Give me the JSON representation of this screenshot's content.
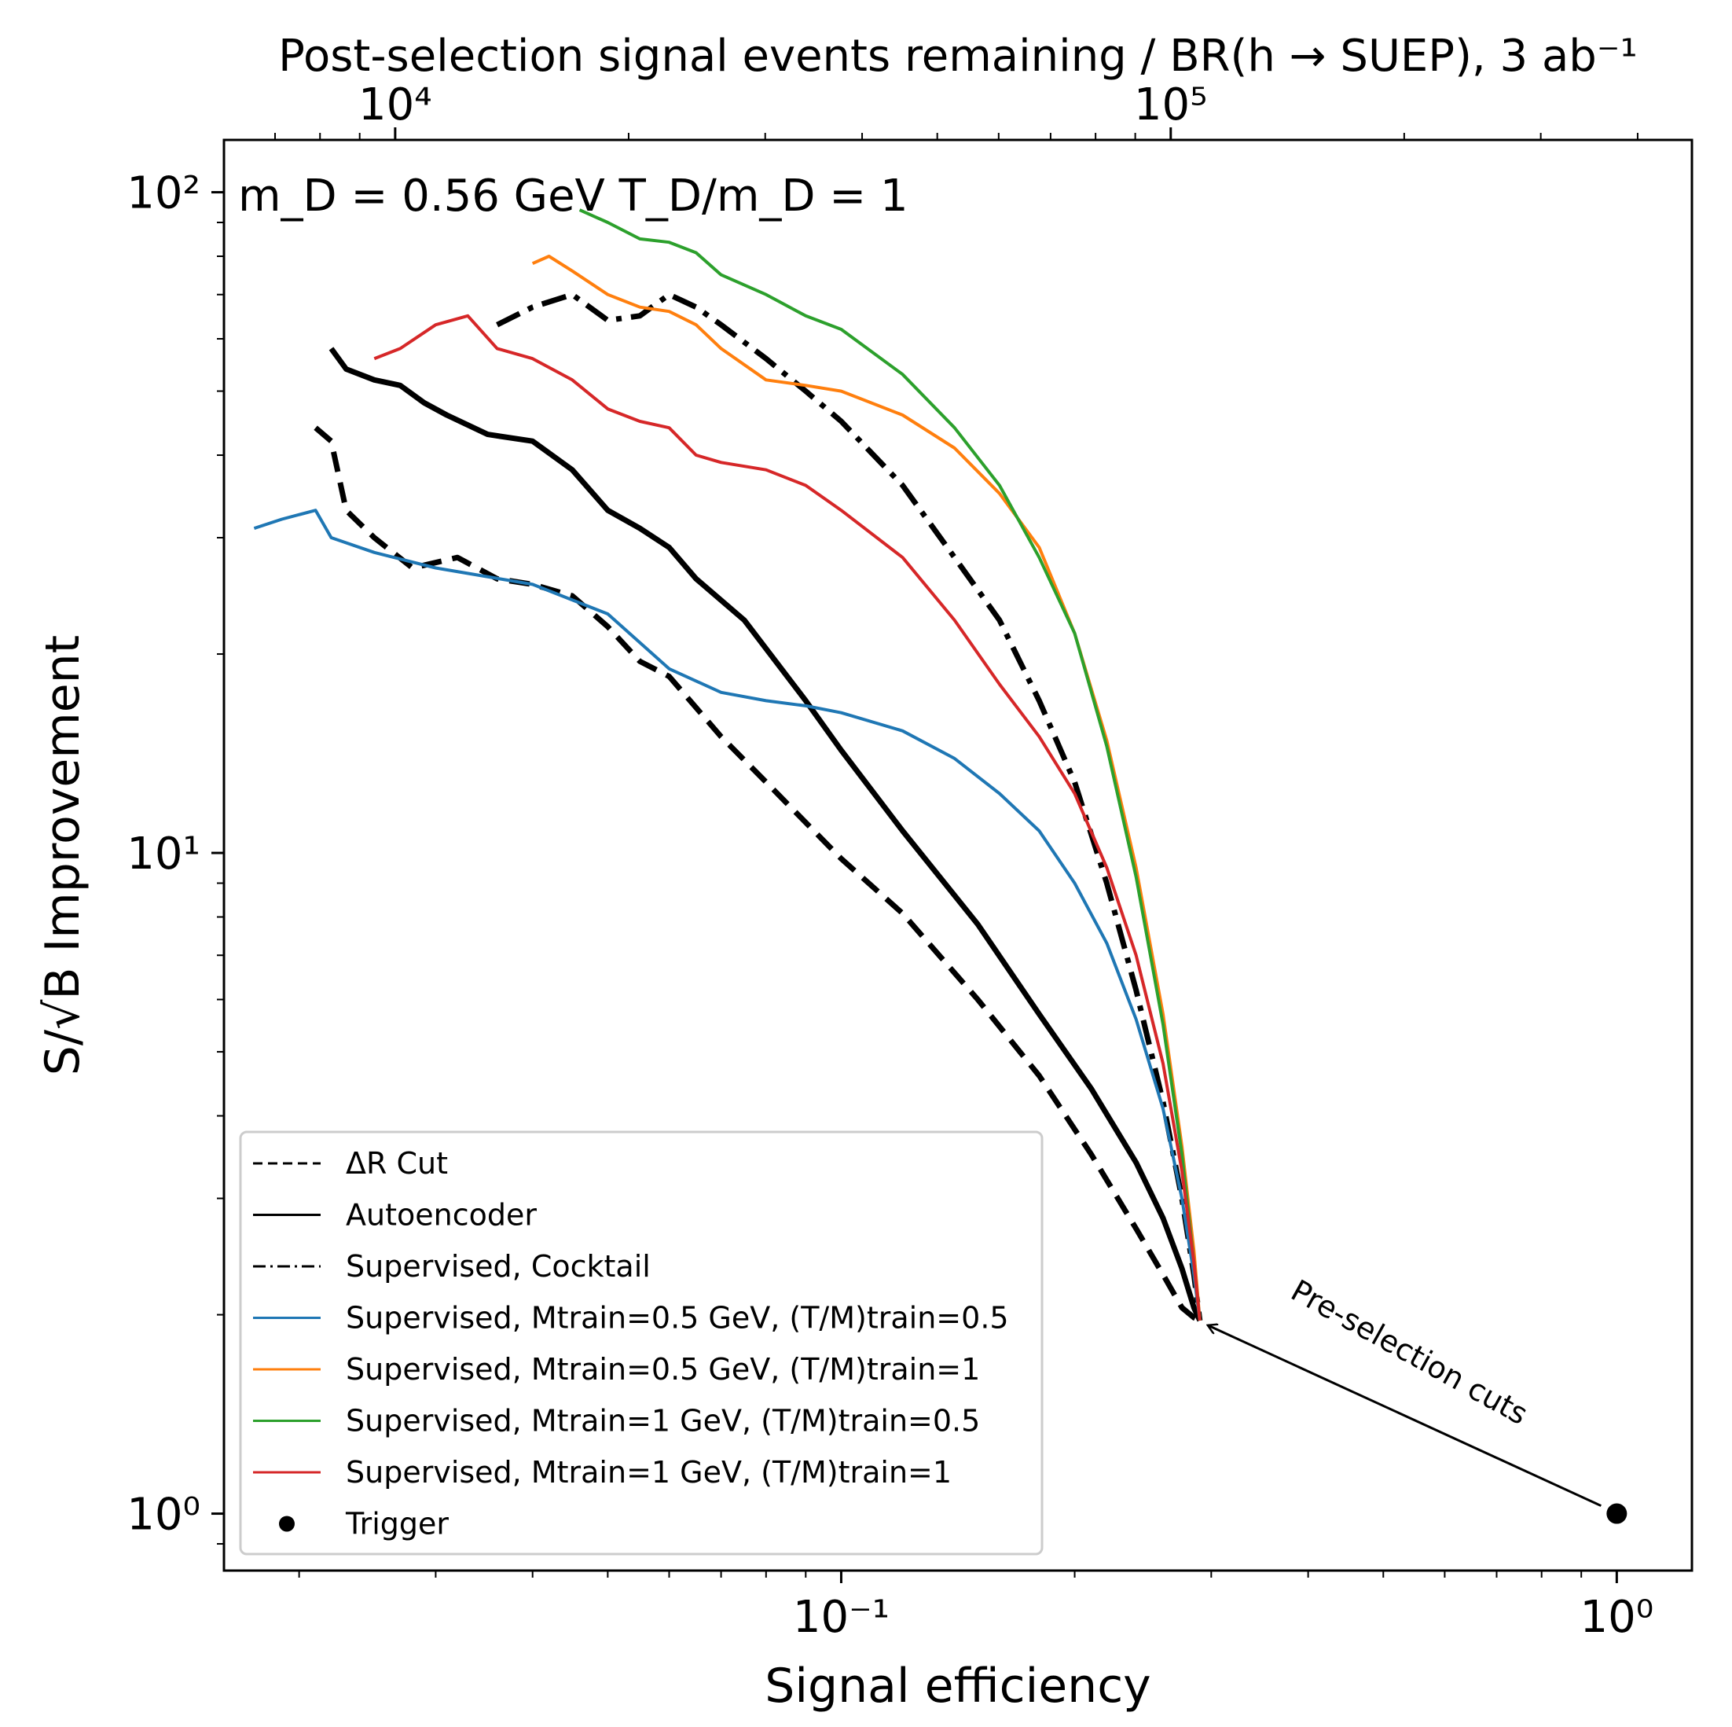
{
  "chart_data": {
    "type": "line",
    "x_scale": "log",
    "y_scale": "log",
    "xlabel": "Signal efficiency",
    "ylabel": "S/√B Improvement",
    "top_axis_label": "Post-selection signal events remaining / BR(h → SUEP), 3 ab⁻¹",
    "xlim": [
      0.016,
      1.25
    ],
    "ylim": [
      0.82,
      120
    ],
    "x_ticks": [
      {
        "value": 0.1,
        "label": "10⁻¹"
      },
      {
        "value": 1,
        "label": "10⁰"
      }
    ],
    "y_ticks": [
      {
        "value": 1,
        "label": "10⁰"
      },
      {
        "value": 10,
        "label": "10¹"
      },
      {
        "value": 100,
        "label": "10²"
      }
    ],
    "top_ticks": [
      {
        "value": 0.0266,
        "label": "10⁴"
      },
      {
        "value": 0.266,
        "label": "10⁵"
      }
    ],
    "inset_label": "m_D = 0.56 GeV  T_D/m_D = 1",
    "annotation": {
      "text": "Pre-selection cuts",
      "from": [
        1.0,
        1.0
      ],
      "to": [
        0.29,
        1.96
      ]
    },
    "series": [
      {
        "name": "ΔR̄ Cut",
        "legend_label": "ΔR Cut",
        "color": "#000000",
        "style": "dashed",
        "width": 7,
        "x": [
          0.021,
          0.022,
          0.023,
          0.025,
          0.028,
          0.032,
          0.036,
          0.04,
          0.045,
          0.05,
          0.055,
          0.06,
          0.07,
          0.08,
          0.1,
          0.12,
          0.15,
          0.18,
          0.21,
          0.24,
          0.26,
          0.275,
          0.285,
          0.29
        ],
        "y": [
          44,
          42,
          33,
          30,
          27,
          28,
          26,
          25.5,
          24.5,
          22,
          19.5,
          18.5,
          15,
          12.8,
          9.8,
          8.1,
          6.0,
          4.6,
          3.5,
          2.7,
          2.3,
          2.05,
          1.98,
          1.96
        ]
      },
      {
        "name": "Autoencoder",
        "legend_label": "Autoencoder",
        "color": "#000000",
        "style": "solid",
        "width": 7,
        "x": [
          0.022,
          0.023,
          0.025,
          0.027,
          0.029,
          0.031,
          0.035,
          0.04,
          0.045,
          0.05,
          0.055,
          0.06,
          0.065,
          0.075,
          0.09,
          0.1,
          0.12,
          0.15,
          0.18,
          0.21,
          0.24,
          0.26,
          0.275,
          0.285,
          0.29
        ],
        "y": [
          58,
          54,
          52,
          51,
          48,
          46,
          43,
          42,
          38,
          33,
          31,
          29,
          26,
          22.5,
          17,
          14.3,
          10.8,
          7.8,
          5.7,
          4.4,
          3.4,
          2.8,
          2.35,
          2.05,
          1.96
        ]
      },
      {
        "name": "Supervised, Cocktail",
        "legend_label": "Supervised, Cocktail",
        "color": "#000000",
        "style": "dashdot",
        "width": 7,
        "x": [
          0.036,
          0.04,
          0.045,
          0.05,
          0.055,
          0.06,
          0.065,
          0.07,
          0.08,
          0.09,
          0.1,
          0.12,
          0.14,
          0.16,
          0.18,
          0.2,
          0.22,
          0.24,
          0.26,
          0.275,
          0.285,
          0.29
        ],
        "y": [
          63,
          67,
          70,
          64,
          65,
          70,
          67,
          63,
          56,
          50,
          45,
          36,
          28,
          22.5,
          17,
          12.8,
          9.0,
          6.2,
          4.2,
          3.0,
          2.3,
          1.96
        ]
      },
      {
        "name": "Supervised, M_train=0.5 GeV, (T/M)_train=0.5",
        "legend_label": "Supervised, Mtrain=0.5 GeV, (T/M)train=0.5",
        "color": "#1f77b4",
        "style": "solid",
        "width": 4,
        "x": [
          0.0175,
          0.019,
          0.021,
          0.022,
          0.025,
          0.03,
          0.04,
          0.05,
          0.06,
          0.07,
          0.08,
          0.09,
          0.1,
          0.12,
          0.14,
          0.16,
          0.18,
          0.2,
          0.22,
          0.24,
          0.26,
          0.275,
          0.285,
          0.29
        ],
        "y": [
          31,
          32,
          33,
          30,
          28.5,
          27,
          25.5,
          23,
          19,
          17.5,
          17,
          16.7,
          16.3,
          15.3,
          13.9,
          12.3,
          10.8,
          9.0,
          7.3,
          5.6,
          4.1,
          3.0,
          2.3,
          1.96
        ]
      },
      {
        "name": "Supervised, M_train=0.5 GeV, (T/M)_train=1",
        "legend_label": "Supervised, Mtrain=0.5 GeV, (T/M)train=1",
        "color": "#ff7f0e",
        "style": "solid",
        "width": 4,
        "x": [
          0.04,
          0.042,
          0.045,
          0.05,
          0.055,
          0.06,
          0.065,
          0.07,
          0.08,
          0.09,
          0.1,
          0.12,
          0.14,
          0.16,
          0.18,
          0.2,
          0.22,
          0.24,
          0.26,
          0.275,
          0.285,
          0.29
        ],
        "y": [
          78,
          80,
          76,
          70,
          67,
          66,
          63,
          58,
          52,
          51,
          50,
          46,
          41,
          35,
          29,
          21.5,
          14.8,
          9.5,
          5.7,
          3.6,
          2.5,
          1.96
        ]
      },
      {
        "name": "Supervised, M_train=1 GeV, (T/M)_train=0.5",
        "legend_label": "Supervised, Mtrain=1 GeV, (T/M)train=0.5",
        "color": "#2ca02c",
        "style": "solid",
        "width": 4,
        "x": [
          0.046,
          0.05,
          0.055,
          0.06,
          0.065,
          0.07,
          0.08,
          0.09,
          0.1,
          0.12,
          0.14,
          0.16,
          0.18,
          0.2,
          0.22,
          0.24,
          0.26,
          0.275,
          0.285,
          0.29
        ],
        "y": [
          94,
          90,
          85,
          84,
          81,
          75,
          70,
          65,
          62,
          53,
          44,
          36,
          28,
          21.5,
          14.5,
          9.2,
          5.5,
          3.5,
          2.4,
          1.96
        ]
      },
      {
        "name": "Supervised, M_train=1 GeV, (T/M)_train=1",
        "legend_label": "Supervised, Mtrain=1 GeV, (T/M)train=1",
        "color": "#d62728",
        "style": "solid",
        "width": 4,
        "x": [
          0.025,
          0.027,
          0.03,
          0.033,
          0.036,
          0.04,
          0.045,
          0.05,
          0.055,
          0.06,
          0.065,
          0.07,
          0.08,
          0.09,
          0.1,
          0.12,
          0.14,
          0.16,
          0.18,
          0.2,
          0.22,
          0.24,
          0.26,
          0.275,
          0.285,
          0.29
        ],
        "y": [
          56,
          58,
          63,
          65,
          58,
          56,
          52,
          47,
          45,
          44,
          40,
          39,
          38,
          36,
          33,
          28,
          22.5,
          18,
          15,
          12.3,
          9.5,
          7.0,
          4.8,
          3.3,
          2.4,
          1.96
        ]
      },
      {
        "name": "Trigger",
        "legend_label": "Trigger",
        "color": "#000000",
        "style": "marker",
        "x": [
          1.0
        ],
        "y": [
          1.0
        ]
      }
    ]
  }
}
